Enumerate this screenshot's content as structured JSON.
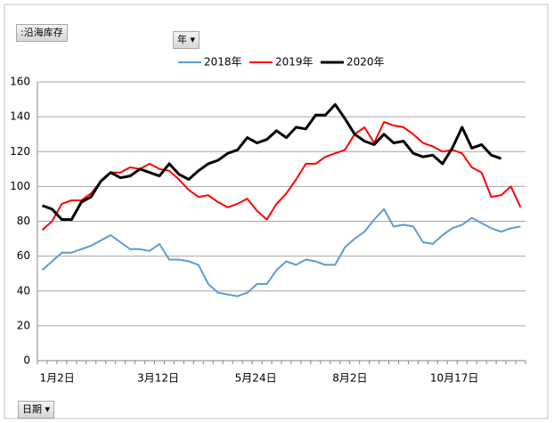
{
  "controls": {
    "field_button": ":沿海库存",
    "legend_filter": "年",
    "axis_button": "日期"
  },
  "chart_data": {
    "type": "line",
    "categories": [
      "1月2日",
      null,
      null,
      null,
      null,
      null,
      null,
      null,
      null,
      null,
      "3月12日",
      null,
      null,
      null,
      null,
      null,
      null,
      null,
      null,
      null,
      "5月24日",
      null,
      null,
      null,
      null,
      null,
      null,
      null,
      null,
      null,
      "8月2日",
      null,
      null,
      null,
      null,
      null,
      null,
      null,
      null,
      null,
      "10月17日",
      null,
      null,
      null,
      null,
      null,
      null,
      null,
      null,
      null
    ],
    "series": [
      {
        "name": "2018年",
        "color": "#5b9bd5",
        "values": [
          52,
          57,
          62,
          62,
          64,
          66,
          69,
          72,
          68,
          64,
          64,
          63,
          67,
          58,
          58,
          57,
          55,
          44,
          39,
          38,
          37,
          39,
          44,
          44,
          52,
          57,
          55,
          58,
          57,
          55,
          55,
          65,
          70,
          74,
          81,
          87,
          77,
          78,
          77,
          68,
          67,
          72,
          76,
          78,
          82,
          79,
          76,
          74,
          76,
          77
        ]
      },
      {
        "name": "2019年",
        "color": "#ff0000",
        "values": [
          75,
          80,
          90,
          92,
          92,
          96,
          103,
          108,
          108,
          111,
          110,
          113,
          110,
          109,
          104,
          98,
          94,
          95,
          91,
          88,
          90,
          93,
          86,
          81,
          90,
          96,
          104,
          113,
          113,
          117,
          119,
          121,
          130,
          134,
          125,
          137,
          135,
          134,
          130,
          125,
          123,
          120,
          121,
          119,
          111,
          108,
          94,
          95,
          100,
          88
        ]
      },
      {
        "name": "2020年",
        "color": "#000000",
        "values": [
          89,
          87,
          81,
          81,
          91,
          94,
          103,
          108,
          105,
          106,
          110,
          108,
          106,
          113,
          107,
          104,
          109,
          113,
          115,
          119,
          121,
          128,
          125,
          127,
          132,
          128,
          134,
          133,
          141,
          141,
          147,
          139,
          130,
          126,
          124,
          130,
          125,
          126,
          119,
          117,
          118,
          113,
          122,
          134,
          122,
          124,
          118,
          116,
          null,
          null
        ]
      }
    ],
    "ylim": [
      0,
      160
    ],
    "yticks": [
      0,
      20,
      40,
      60,
      80,
      100,
      120,
      140,
      160
    ],
    "grid": true,
    "legend": "top"
  }
}
